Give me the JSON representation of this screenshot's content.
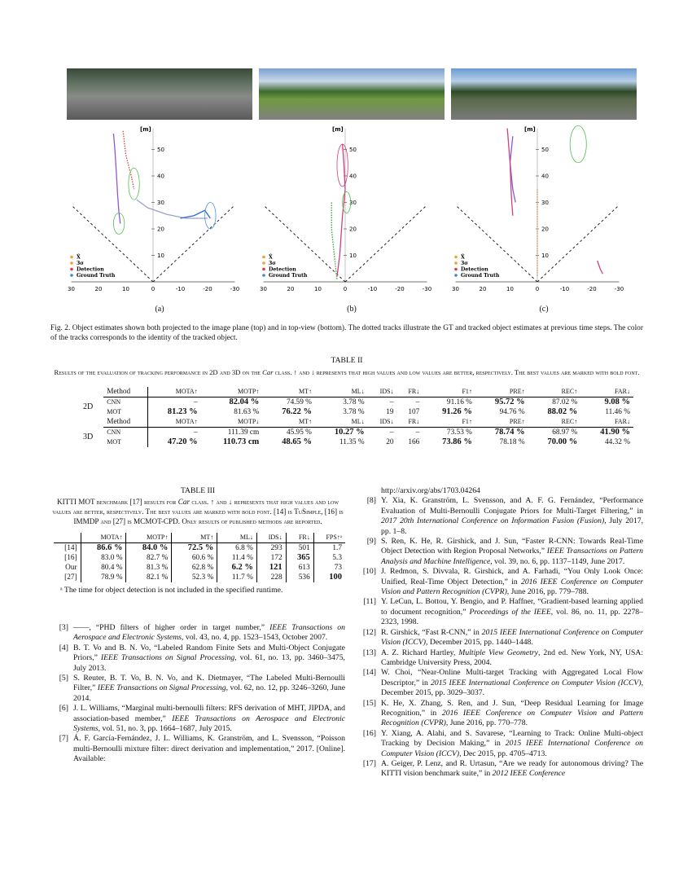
{
  "figure": {
    "panels": [
      {
        "label": "(a)"
      },
      {
        "label": "(b)"
      },
      {
        "label": "(c)"
      }
    ],
    "y_unit": "[m]",
    "x_ticks": [
      "30",
      "20",
      "10",
      "0",
      "-10",
      "-20",
      "-30"
    ],
    "y_ticks": [
      "10",
      "20",
      "30",
      "40",
      "50"
    ],
    "legend": [
      "X̂",
      "3σ",
      "Detection",
      "Ground Truth"
    ],
    "legend_colors": [
      "#f0a030",
      "#f0a030",
      "#d04040",
      "#3a8ad0"
    ],
    "caption": "Fig. 2.   Object estimates shown both projected to the image plane (top) and in top-view (bottom). The dotted tracks illustrate the GT and tracked object estimates at previous time steps. The color of the tracks corresponds to the identity of the tracked object."
  },
  "table2": {
    "title": "TABLE II",
    "caption_a": "Results of the evaluation of tracking performance in 2D and 3D on the ",
    "caption_car": "Car",
    "caption_b": " class. ↑ and ↓ represents that high values and low values are better, respectively. The best values are marked with bold font.",
    "blocks": [
      {
        "dim": "2D",
        "header": [
          "Method",
          "MOTA↑",
          "MOTP↑",
          "MT↑",
          "ML↓",
          "IDS↓",
          "FR↓",
          "F1↑",
          "PRE↑",
          "REC↑",
          "FAR↓"
        ],
        "rows": [
          {
            "cells": [
              "CNN",
              "–",
              "82.04 %",
              "74.59 %",
              "3.78 %",
              "–",
              "–",
              "91.16 %",
              "95.72 %",
              "87.02 %",
              "9.08 %"
            ],
            "bold": [
              2,
              8,
              10
            ]
          },
          {
            "cells": [
              "MOT",
              "81.23 %",
              "81.63 %",
              "76.22 %",
              "3.78 %",
              "19",
              "107",
              "91.26 %",
              "94.76 %",
              "88.02 %",
              "11.46 %"
            ],
            "bold": [
              1,
              3,
              7,
              9
            ]
          }
        ]
      },
      {
        "dim": "3D",
        "header": [
          "Method",
          "MOTA↑",
          "MOTP↓",
          "MT↑",
          "ML↓",
          "IDS↓",
          "FR↓",
          "F1↑",
          "PRE↑",
          "REC↑",
          "FAR↓"
        ],
        "rows": [
          {
            "cells": [
              "CNN",
              "–",
              "111.39 cm",
              "45.95 %",
              "10.27 %",
              "–",
              "–",
              "73.53 %",
              "78.74 %",
              "68.97 %",
              "41.90 %"
            ],
            "bold": [
              4,
              8,
              10
            ]
          },
          {
            "cells": [
              "MOT",
              "47.20 %",
              "110.73 cm",
              "48.65 %",
              "11.35 %",
              "20",
              "166",
              "73.86 %",
              "78.18 %",
              "70.00 %",
              "44.32 %"
            ],
            "bold": [
              1,
              2,
              3,
              7,
              9
            ]
          }
        ]
      }
    ]
  },
  "table3": {
    "title": "TABLE III",
    "caption_a": "KITTI MOT benchmark [17] results for ",
    "caption_car": "Car",
    "caption_b": " class. ↑ and ↓ represents that high values and low values are better, respectively. The best values are marked with bold font. [14] is TuSimple, [16] is IMMDP and [27] is MCMOT-CPD. Only results of published methods are reported.",
    "header": [
      "",
      "MOTA↑",
      "MOTP↑",
      "MT↑",
      "ML↓",
      "IDS↓",
      "FR↓",
      "FPS↑ᵃ"
    ],
    "rows": [
      {
        "cells": [
          "[14]",
          "86.6 %",
          "84.0 %",
          "72.5 %",
          "6.8 %",
          "293",
          "501",
          "1.7"
        ],
        "bold": [
          1,
          2,
          3
        ]
      },
      {
        "cells": [
          "[16]",
          "83.0 %",
          "82.7 %",
          "60.6 %",
          "11.4 %",
          "172",
          "365",
          "5.3"
        ],
        "bold": [
          6
        ]
      },
      {
        "cells": [
          "Our",
          "80.4 %",
          "81.3 %",
          "62.8 %",
          "6.2 %",
          "121",
          "613",
          "73"
        ],
        "bold": [
          4,
          5
        ]
      },
      {
        "cells": [
          "[27]",
          "78.9 %",
          "82.1 %",
          "52.3 %",
          "11.7 %",
          "228",
          "536",
          "100"
        ],
        "bold": [
          7
        ]
      }
    ],
    "footnote": "ᵃ The time for object detection is not included in the specified runtime."
  },
  "refs_left": [
    {
      "n": "[3]",
      "pre": "——, “PHD filters of higher order in target number,” ",
      "it": "IEEE Transactions on Aerospace and Electronic Systems",
      "post": ", vol. 43, no. 4, pp. 1523–1543, October 2007."
    },
    {
      "n": "[4]",
      "pre": "B. T. Vo and B. N. Vo, “Labeled Random Finite Sets and Multi-Object Conjugate Priors,” ",
      "it": "IEEE Transactions on Signal Processing",
      "post": ", vol. 61, no. 13, pp. 3460–3475, July 2013."
    },
    {
      "n": "[5]",
      "pre": "S. Reuter, B. T. Vo, B. N. Vo, and K. Dietmayer, “The Labeled Multi-Bernoulli Filter,” ",
      "it": "IEEE Transactions on Signal Processing",
      "post": ", vol. 62, no. 12, pp. 3246–3260, June 2014."
    },
    {
      "n": "[6]",
      "pre": "J. L. Williams, “Marginal multi-bernoulli filters: RFS derivation of MHT, JIPDA, and association-based member,” ",
      "it": "IEEE Transactions on Aerospace and Electronic Systems",
      "post": ", vol. 51, no. 3, pp. 1664–1687, July 2015."
    },
    {
      "n": "[7]",
      "pre": "Á. F. García-Fernández, J. L. Williams, K. Granström, and L. Svensson, “Poisson multi-Bernoulli mixture filter: direct derivation and implementation,” 2017. [Online]. Available:",
      "it": "",
      "post": ""
    }
  ],
  "refs_right_cont": "http://arxiv.org/abs/1703.04264",
  "refs_right": [
    {
      "n": "[8]",
      "pre": "Y. Xia, K. Granström, L. Svensson, and A. F. G. Fernández, “Performance Evaluation of Multi-Bernoulli Conjugate Priors for Multi-Target Filtering,” in ",
      "it": "2017 20th International Conference on Information Fusion (Fusion)",
      "post": ", July 2017, pp. 1–8."
    },
    {
      "n": "[9]",
      "pre": "S. Ren, K. He, R. Girshick, and J. Sun, “Faster R-CNN: Towards Real-Time Object Detection with Region Proposal Networks,” ",
      "it": "IEEE Transactions on Pattern Analysis and Machine Intelligence",
      "post": ", vol. 39, no. 6, pp. 1137–1149, June 2017."
    },
    {
      "n": "[10]",
      "pre": "J. Redmon, S. Divvala, R. Girshick, and A. Farhadi, “You Only Look Once: Unified, Real-Time Object Detection,” in ",
      "it": "2016 IEEE Conference on Computer Vision and Pattern Recognition (CVPR)",
      "post": ", June 2016, pp. 779–788."
    },
    {
      "n": "[11]",
      "pre": "Y. LeCun, L. Bottou, Y. Bengio, and P. Haffner, “Gradient-based learning applied to document recognition,” ",
      "it": "Proceedings of the IEEE",
      "post": ", vol. 86, no. 11, pp. 2278–2323, 1998."
    },
    {
      "n": "[12]",
      "pre": "R. Girshick, “Fast R-CNN,” in ",
      "it": "2015 IEEE International Conference on Computer Vision (ICCV)",
      "post": ", December 2015, pp. 1440–1448."
    },
    {
      "n": "[13]",
      "pre": "A. Z. Richard Hartley, ",
      "it": "Multiple View Geometry",
      "post": ", 2nd ed.   New York, NY, USA: Cambridge University Press, 2004."
    },
    {
      "n": "[14]",
      "pre": "W. Choi, “Near-Online Multi-target Tracking with Aggregated Local Flow Descriptor,” in ",
      "it": "2015 IEEE International Conference on Computer Vision (ICCV)",
      "post": ", December 2015, pp. 3029–3037."
    },
    {
      "n": "[15]",
      "pre": "K. He, X. Zhang, S. Ren, and J. Sun, “Deep Residual Learning for Image Recognition,” in ",
      "it": "2016 IEEE Conference on Computer Vision and Pattern Recognition (CVPR)",
      "post": ", June 2016, pp. 770–778."
    },
    {
      "n": "[16]",
      "pre": "Y. Xiang, A. Alahi, and S. Savarese, “Learning to Track: Online Multi-object Tracking by Decision Making,” in ",
      "it": "2015 IEEE International Conference on Computer Vision (ICCV)",
      "post": ", Dec 2015, pp. 4705–4713."
    },
    {
      "n": "[17]",
      "pre": "A. Geiger, P. Lenz, and R. Urtasun, “Are we ready for autonomous driving? The KITTI vision benchmark suite,” in ",
      "it": "2012 IEEE Conference",
      "post": ""
    }
  ]
}
